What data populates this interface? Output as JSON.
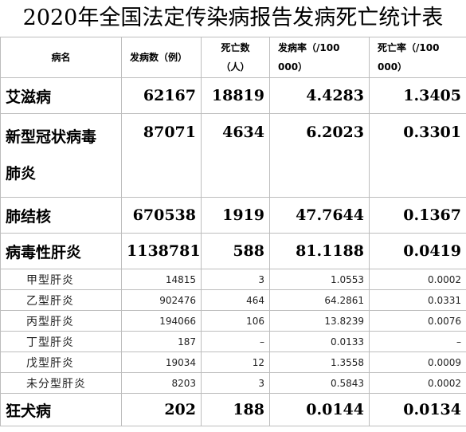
{
  "title": "2020年全国法定传染病报告发病死亡统计表",
  "headers": {
    "name": "病名",
    "cases": "发病数（例）",
    "deaths_line1": "死亡数",
    "deaths_line2": "（人）",
    "incidence_line1": "发病率（/100",
    "incidence_line2": "000）",
    "mortality_line1": "死亡率（/100",
    "mortality_line2": "000）"
  },
  "rows": [
    {
      "name": "艾滋病",
      "cases": "62167",
      "deaths": "18819",
      "incidence": "4.4283",
      "mortality": "1.3405"
    },
    {
      "name_line1": "新型冠状病毒",
      "name_line2": "肺炎",
      "cases": "87071",
      "deaths": "4634",
      "incidence": "6.2023",
      "mortality": "0.3301"
    },
    {
      "name": "肺结核",
      "cases": "670538",
      "deaths": "1919",
      "incidence": "47.7644",
      "mortality": "0.1367"
    },
    {
      "name": "病毒性肝炎",
      "cases": "1138781",
      "deaths": "588",
      "incidence": "81.1188",
      "mortality": "0.0419"
    },
    {
      "name": "甲型肝炎",
      "cases": "14815",
      "deaths": "3",
      "incidence": "1.0553",
      "mortality": "0.0002"
    },
    {
      "name": "乙型肝炎",
      "cases": "902476",
      "deaths": "464",
      "incidence": "64.2861",
      "mortality": "0.0331"
    },
    {
      "name": "丙型肝炎",
      "cases": "194066",
      "deaths": "106",
      "incidence": "13.8239",
      "mortality": "0.0076"
    },
    {
      "name": "丁型肝炎",
      "cases": "187",
      "deaths": "–",
      "incidence": "0.0133",
      "mortality": "–"
    },
    {
      "name": "戊型肝炎",
      "cases": "19034",
      "deaths": "12",
      "incidence": "1.3558",
      "mortality": "0.0009"
    },
    {
      "name": "未分型肝炎",
      "cases": "8203",
      "deaths": "3",
      "incidence": "0.5843",
      "mortality": "0.0002"
    },
    {
      "name": "狂犬病",
      "cases": "202",
      "deaths": "188",
      "incidence": "0.0144",
      "mortality": "0.0134"
    }
  ]
}
